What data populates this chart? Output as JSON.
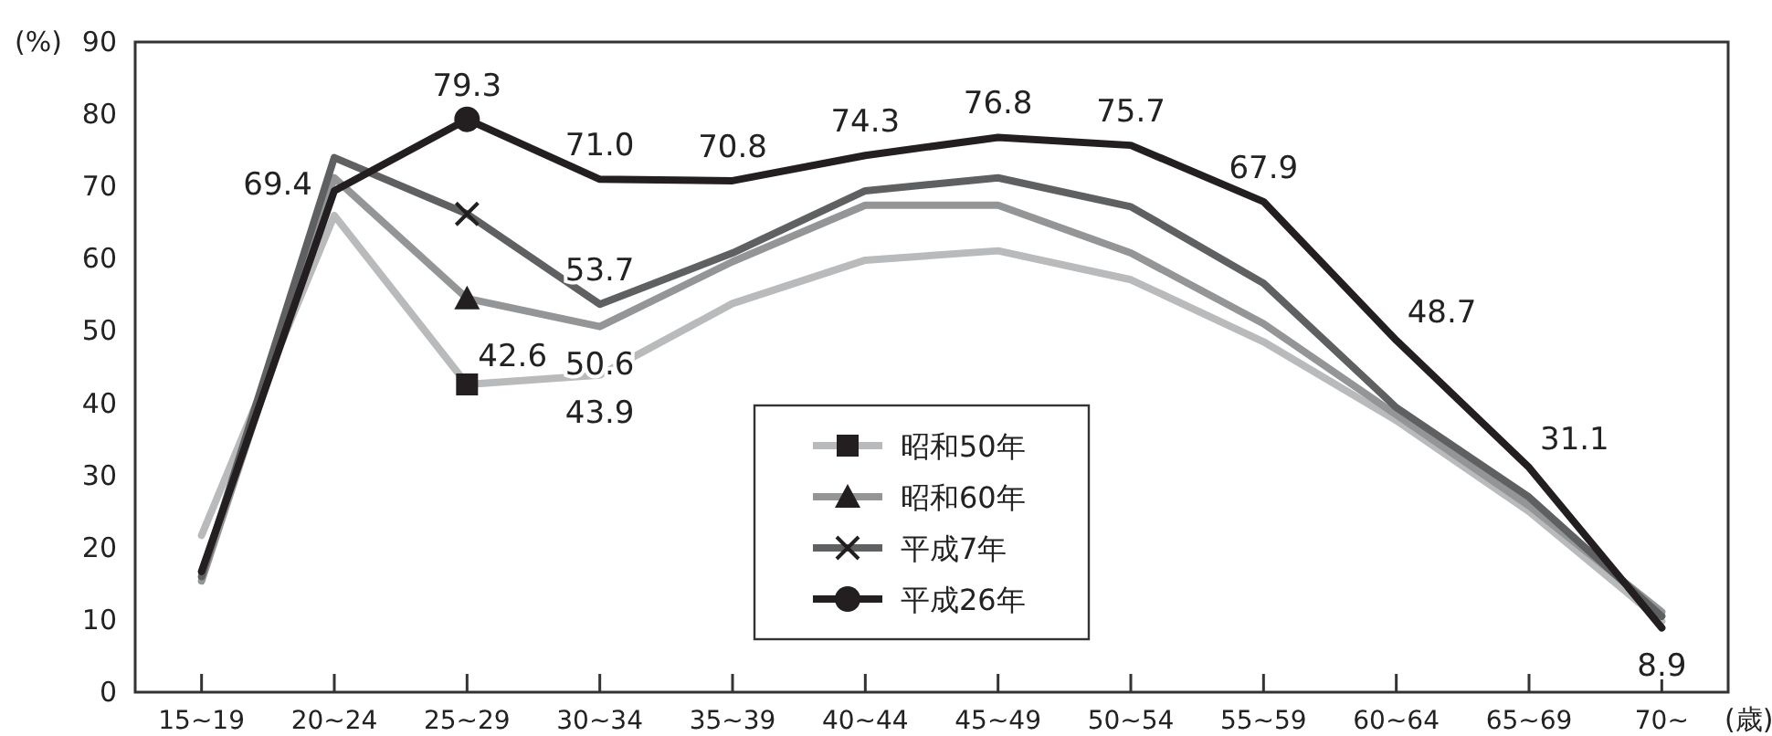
{
  "chart_data": {
    "type": "line",
    "ylabel": "(%)",
    "xlabel": "(歳)",
    "categories": [
      "15~19",
      "20~24",
      "25~29",
      "30~34",
      "35~39",
      "40~44",
      "45~49",
      "50~54",
      "55~59",
      "60~64",
      "65~69",
      "70~"
    ],
    "ylim": [
      0,
      90
    ],
    "yticks": [
      0,
      10,
      20,
      30,
      40,
      50,
      60,
      70,
      80,
      90
    ],
    "grid": false,
    "legend": "bottom",
    "line_style": "solid",
    "series": [
      {
        "name": "昭和50年",
        "color": "#b8babb",
        "values": [
          21.7,
          66,
          42.6,
          43.9,
          53.8,
          59.8,
          61.1,
          57.1,
          48.5,
          37.6,
          25,
          9.8
        ],
        "value_labels": [
          null,
          null,
          "42.6",
          "43.9",
          null,
          null,
          null,
          null,
          null,
          null,
          null,
          null
        ]
      },
      {
        "name": "昭和60年",
        "color": "#939597",
        "values": [
          15.4,
          71.2,
          54.5,
          50.6,
          59.6,
          67.4,
          67.4,
          60.8,
          51,
          38.4,
          25.8,
          11.1
        ],
        "value_labels": [
          null,
          null,
          null,
          "50.6",
          null,
          null,
          null,
          null,
          null,
          null,
          null,
          null
        ]
      },
      {
        "name": "平成7年",
        "color": "#5f6062",
        "values": [
          16,
          74,
          66.2,
          53.7,
          60.8,
          69.4,
          71.2,
          67.2,
          56.6,
          39.4,
          27,
          10.5
        ],
        "value_labels": [
          null,
          null,
          null,
          "53.7",
          null,
          null,
          null,
          null,
          null,
          null,
          null,
          null
        ]
      },
      {
        "name": "平成26年",
        "color": "#231f20",
        "values": [
          16.7,
          69.4,
          79.3,
          71.0,
          70.8,
          74.3,
          76.8,
          75.7,
          67.9,
          48.7,
          31.1,
          8.9
        ],
        "value_labels": [
          null,
          "69.4",
          "79.3",
          "71.0",
          "70.8",
          "74.3",
          "76.8",
          "75.7",
          "67.9",
          "48.7",
          "31.1",
          "8.9"
        ]
      },
      {
        "type": "scatter",
        "color": "#231f20",
        "marker": "square",
        "x": [
          "25~29"
        ],
        "values": [
          42.6
        ]
      },
      {
        "type": "scatter",
        "color": "#231f20",
        "marker": "triangle",
        "x": [
          "25~29"
        ],
        "values": [
          54.5
        ]
      },
      {
        "type": "scatter",
        "color": "#231f20",
        "marker": "cross",
        "x": [
          "25~29"
        ],
        "values": [
          66.2
        ]
      },
      {
        "type": "scatter",
        "color": "#231f20",
        "marker": "circle",
        "x": [
          "25~29"
        ],
        "values": [
          79.3
        ]
      }
    ]
  }
}
